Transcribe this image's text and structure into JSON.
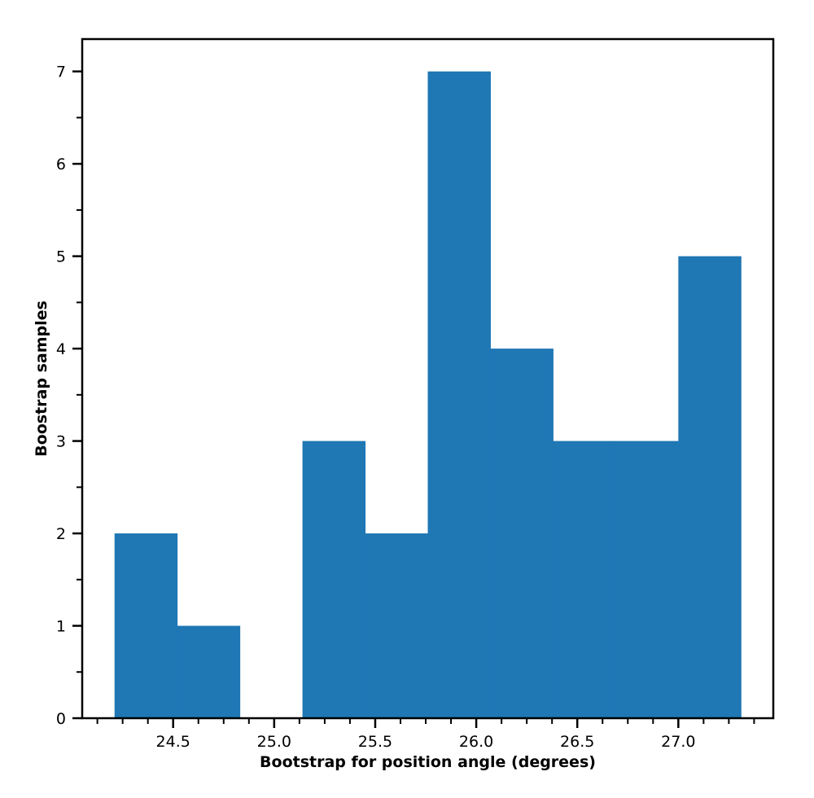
{
  "chart_data": {
    "type": "bar",
    "title": "",
    "xlabel": "Bootstrap for position angle (degrees)",
    "ylabel": "Boostrap samples",
    "bin_edges": [
      24.21,
      24.52,
      24.83,
      25.14,
      25.45,
      25.76,
      26.07,
      26.38,
      26.69,
      27.0,
      27.31
    ],
    "values": [
      2,
      1,
      0,
      3,
      2,
      7,
      4,
      3,
      3,
      5
    ],
    "xlim": [
      24.05,
      27.47
    ],
    "ylim": [
      0,
      7.35
    ],
    "x_major_ticks": [
      24.5,
      25.0,
      25.5,
      26.0,
      26.5,
      27.0
    ],
    "x_tick_labels": [
      "24.5",
      "25.0",
      "25.5",
      "26.0",
      "26.5",
      "27.0"
    ],
    "x_minor_step": 0.125,
    "y_major_ticks": [
      0,
      1,
      2,
      3,
      4,
      5,
      6,
      7
    ],
    "y_tick_labels": [
      "0",
      "1",
      "2",
      "3",
      "4",
      "5",
      "6",
      "7"
    ],
    "y_minor_step": 0.5,
    "bar_color": "#1f77b4",
    "grid": false,
    "legend": "none"
  }
}
